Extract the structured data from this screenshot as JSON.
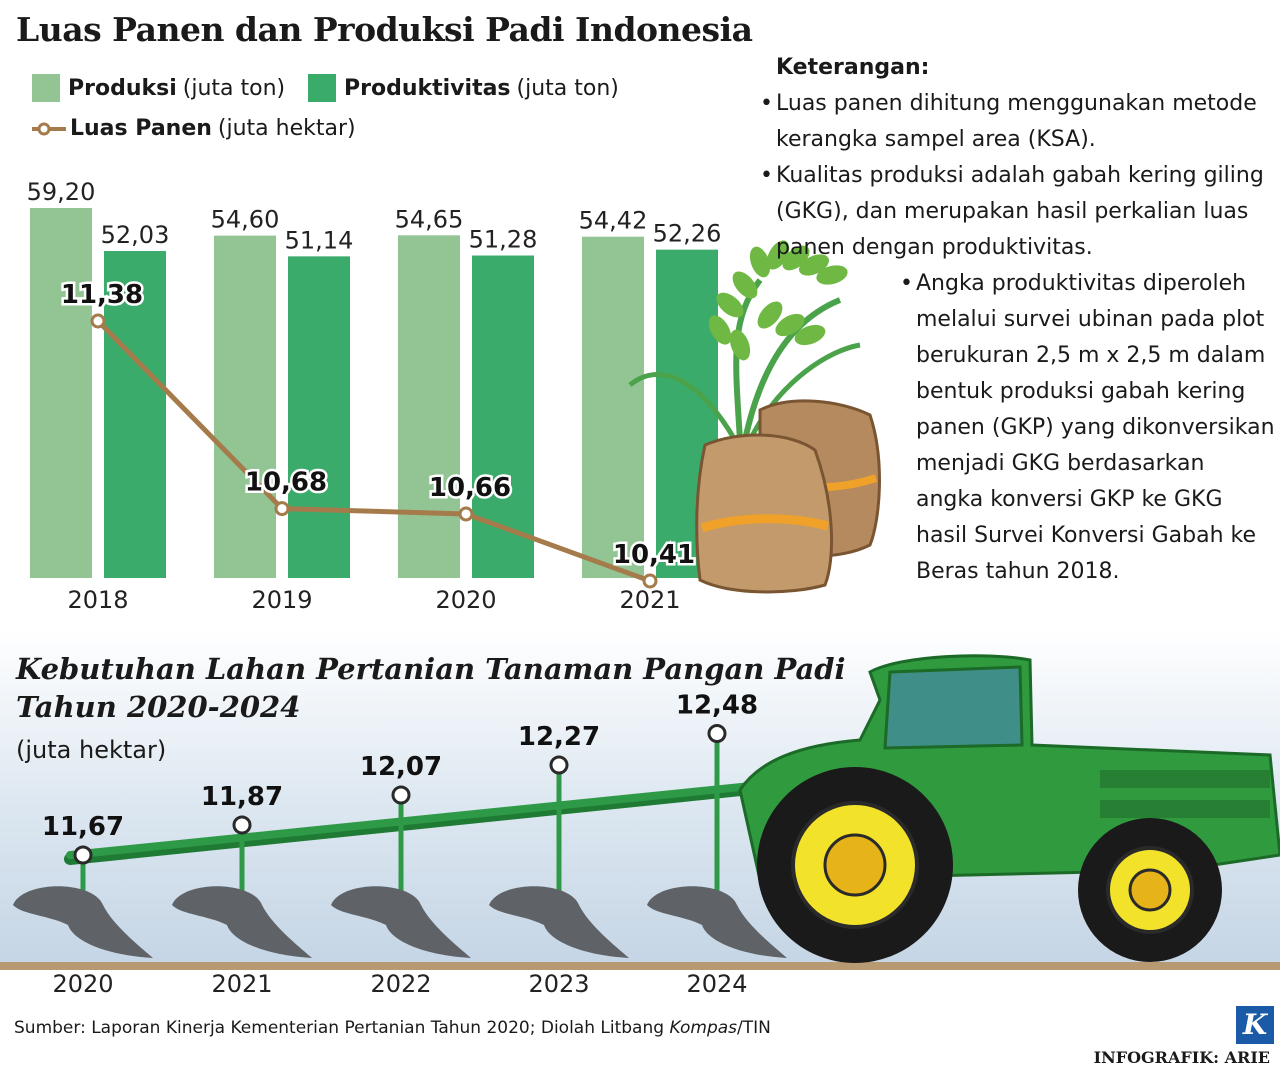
{
  "title": "Luas Panen dan Produksi Padi Indonesia",
  "legend": {
    "produksi": {
      "label": "Produksi",
      "unit": "(juta ton)",
      "color": "#93c594"
    },
    "produktivitas": {
      "label": "Produktivitas",
      "unit": "(juta ton)",
      "color": "#3aab6b"
    },
    "luas_panen": {
      "label": "Luas Panen",
      "unit": "(juta hektar)",
      "color": "#a57b4b"
    }
  },
  "notes": {
    "header": "Keterangan:",
    "items": [
      "Luas panen dihitung menggunakan metode kerangka sampel area (KSA).",
      "Kualitas produksi adalah gabah kering giling (GKG), dan merupakan hasil perkalian luas panen dengan produktivitas.",
      "Angka produktivitas diperoleh melalui survei ubinan pada plot berukuran 2,5 m x 2,5 m dalam bentuk produksi gabah kering panen (GKP) yang dikonversikan menjadi GKG berdasarkan angka konversi GKP ke GKG hasil Survei Konversi Gabah ke Beras tahun 2018."
    ]
  },
  "chart_data": [
    {
      "type": "bar",
      "title": "Luas Panen dan Produksi Padi Indonesia",
      "categories": [
        "2018",
        "2019",
        "2020",
        "2021"
      ],
      "series": [
        {
          "name": "Produksi",
          "kind": "bar",
          "values": [
            59.2,
            54.6,
            54.65,
            54.42
          ],
          "labels": [
            "59,20",
            "54,60",
            "54,65",
            "54,42"
          ],
          "color": "#93c594"
        },
        {
          "name": "Produktivitas",
          "kind": "bar",
          "values": [
            52.03,
            51.14,
            51.28,
            52.26
          ],
          "labels": [
            "52,03",
            "51,14",
            "51,28",
            "52,26"
          ],
          "color": "#3aab6b"
        },
        {
          "name": "Luas Panen",
          "kind": "line",
          "values": [
            11.38,
            10.68,
            10.66,
            10.41
          ],
          "labels": [
            "11,38",
            "10,68",
            "10,66",
            "10,41"
          ],
          "color": "#a57b4b"
        }
      ],
      "grid": false,
      "legend": "top-left"
    },
    {
      "type": "line",
      "title": "Kebutuhan Lahan Pertanian Tanaman Pangan Padi Tahun 2020-2024",
      "unit": "(juta hektar)",
      "x": [
        "2020",
        "2021",
        "2022",
        "2023",
        "2024"
      ],
      "values": [
        11.67,
        11.87,
        12.07,
        12.27,
        12.48
      ],
      "labels": [
        "11,67",
        "11,87",
        "12,07",
        "12,27",
        "12,48"
      ],
      "color": "#2e9a48",
      "grid": false
    }
  ],
  "subchart": {
    "title_line1": "Kebutuhan Lahan Pertanian Tanaman Pangan Padi",
    "title_line2": "Tahun 2020-2024",
    "unit": "(juta hektar)"
  },
  "source": {
    "prefix": "Sumber: Laporan Kinerja Kementerian Pertanian Tahun 2020; Diolah Litbang ",
    "italic": "Kompas",
    "suffix": "/TIN"
  },
  "credit": "INFOGRAFIK: ARIE",
  "logo": "K"
}
